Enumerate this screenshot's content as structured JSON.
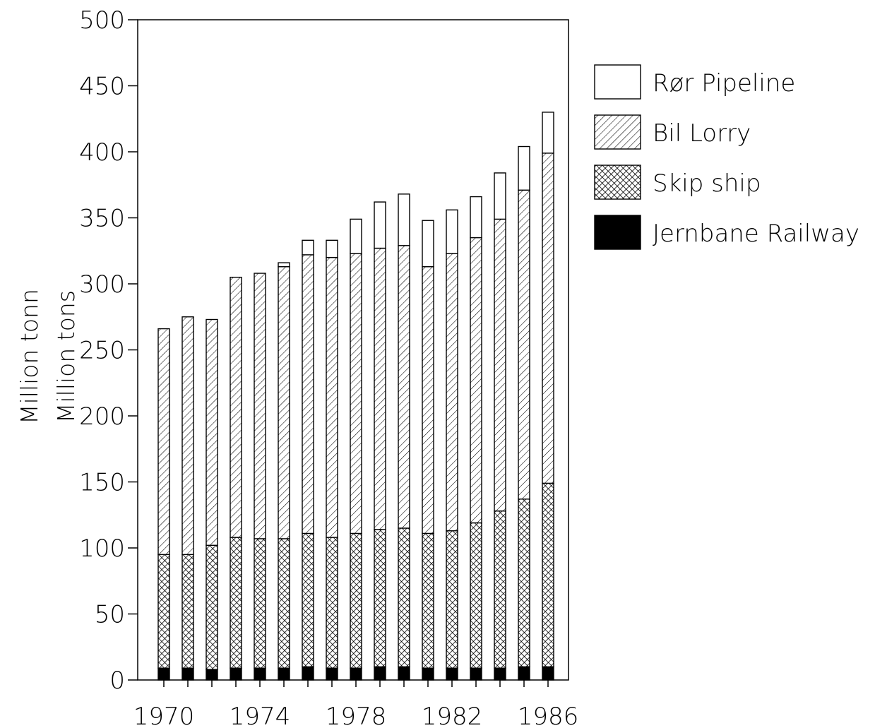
{
  "chart_data": {
    "type": "bar",
    "stacked": true,
    "ylabel_lines": [
      "Million tonn",
      "Million tons"
    ],
    "ylim": [
      0,
      500
    ],
    "yticks": [
      0,
      50,
      100,
      150,
      200,
      250,
      300,
      350,
      400,
      450,
      500
    ],
    "x_tick_labels": [
      "1970",
      "1974",
      "1978",
      "1982",
      "1986"
    ],
    "x": [
      1970,
      1971,
      1972,
      1973,
      1974,
      1975,
      1976,
      1977,
      1978,
      1979,
      1980,
      1981,
      1982,
      1983,
      1984,
      1985,
      1986
    ],
    "legend_position": "right",
    "series": [
      {
        "name": "Jernbane Railway",
        "pattern": "solid",
        "values": [
          9,
          9,
          8,
          9,
          9,
          9,
          10,
          9,
          9,
          10,
          10,
          9,
          9,
          9,
          9,
          10,
          10
        ]
      },
      {
        "name": "Skip ship",
        "pattern": "crosshatch",
        "values": [
          86,
          86,
          94,
          99,
          98,
          98,
          101,
          99,
          102,
          104,
          105,
          102,
          104,
          110,
          119,
          127,
          139
        ]
      },
      {
        "name": "Bil Lorry",
        "pattern": "diagonal",
        "values": [
          171,
          180,
          171,
          197,
          201,
          206,
          211,
          212,
          212,
          213,
          214,
          202,
          210,
          216,
          221,
          234,
          250
        ]
      },
      {
        "name": "Rør Pipeline",
        "pattern": "empty",
        "values": [
          0,
          0,
          0,
          0,
          0,
          3,
          11,
          13,
          26,
          35,
          39,
          35,
          33,
          31,
          35,
          33,
          31
        ]
      }
    ],
    "legend": [
      "Rør Pipeline",
      "Bil Lorry",
      "Skip ship",
      "Jernbane Railway"
    ]
  }
}
